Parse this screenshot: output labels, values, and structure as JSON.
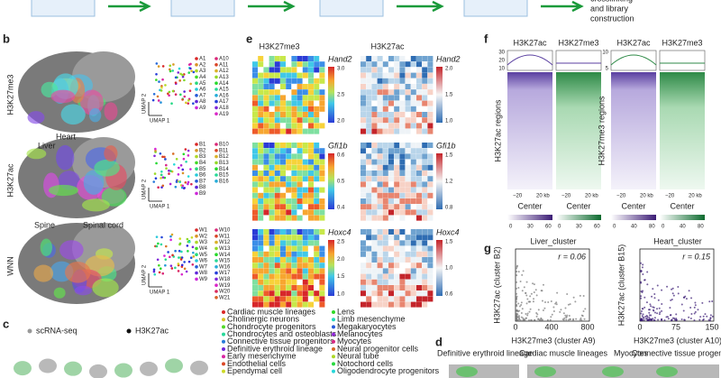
{
  "top": {
    "step_label": [
      "crosslinking",
      "and library",
      "construction"
    ]
  },
  "panel_b": {
    "label": "b",
    "rows": [
      {
        "name": "H3K27me3",
        "legend": [
          "A1",
          "A2",
          "A3",
          "A4",
          "A5",
          "A6",
          "A7",
          "A8",
          "A9",
          "A10",
          "A11",
          "A12",
          "A13",
          "A14",
          "A15",
          "A16",
          "A17",
          "A18",
          "A19"
        ]
      },
      {
        "name": "H3K27ac",
        "legend": [
          "B1",
          "B2",
          "B3",
          "B4",
          "B5",
          "B6",
          "B7",
          "B8",
          "B9",
          "B10",
          "B11",
          "B12",
          "B13",
          "B14",
          "B15",
          "B16"
        ]
      },
      {
        "name": "WNN",
        "legend": [
          "W1",
          "W2",
          "W3",
          "W4",
          "W5",
          "W6",
          "W7",
          "W8",
          "W9",
          "W10",
          "W11",
          "W12",
          "W13",
          "W14",
          "W15",
          "W16",
          "W17",
          "W18",
          "W19",
          "W20",
          "W21"
        ]
      }
    ],
    "annotations": [
      "Liver",
      "Heart",
      "Spine",
      "Spinal cord"
    ],
    "umap_x": "UMAP 1",
    "umap_y": "UMAP 2"
  },
  "panel_e": {
    "label": "e",
    "columns": [
      {
        "mark": "H3K27me3",
        "genes": [
          {
            "name": "Hand2",
            "ticks": [
              "3.0",
              "2.5",
              "2.0"
            ]
          },
          {
            "name": "Gfi1b",
            "ticks": [
              "0.6",
              "0.5",
              "0.4"
            ]
          },
          {
            "name": "Hoxc4",
            "ticks": [
              "2.5",
              "2.0",
              "1.5",
              "1.0"
            ]
          }
        ]
      },
      {
        "mark": "H3K27ac",
        "genes": [
          {
            "name": "Hand2",
            "ticks": [
              "2.0",
              "1.5",
              "1.0"
            ]
          },
          {
            "name": "Gfi1b",
            "ticks": [
              "1.5",
              "1.2",
              "0.8"
            ]
          },
          {
            "name": "Hoxc4",
            "ticks": [
              "1.5",
              "1.0",
              "0.6"
            ]
          }
        ]
      }
    ]
  },
  "panel_f": {
    "label": "f",
    "groups": [
      {
        "headers": [
          "H3K27ac",
          "H3K27me3"
        ],
        "y_label": "H3K27ac regions",
        "profile_ticks": [
          "30",
          "20",
          "10"
        ],
        "colorbar_ticks": [
          "0",
          "30",
          "60"
        ]
      },
      {
        "headers": [
          "H3K27ac",
          "H3K27me3"
        ],
        "y_label": "H3K27me3 regions",
        "profile_ticks": [
          "10",
          "5"
        ],
        "colorbar_ticks": [
          "0",
          "40",
          "80"
        ]
      }
    ],
    "x_ticks": [
      "−20",
      "20 kb"
    ],
    "x_label": "Center"
  },
  "panel_g": {
    "label": "g",
    "plots": [
      {
        "title": "Liver_cluster",
        "r": "r = 0.06",
        "y_label": "H3K27ac (cluster B2)",
        "x_label": "H3K27me3 (cluster A9)",
        "x_ticks": [
          "0",
          "400",
          "800"
        ]
      },
      {
        "title": "Heart_cluster",
        "r": "r = 0.15",
        "y_label": "H3K27ac (cluster B15)",
        "x_label": "H3K27me3 (cluster A10)",
        "x_ticks": [
          "0",
          "75",
          "150"
        ]
      }
    ]
  },
  "panel_c": {
    "label": "c",
    "legend_titles": [
      "scRNA-seq",
      "H3K27ac"
    ],
    "cell_types": [
      "Cardiac muscle lineages",
      "Cholinergic neurons",
      "Chondrocyte progenitors",
      "Chondrocytes and osteoblasts",
      "Connective tissue progenitors",
      "Definitive erythroid lineage",
      "Early mesenchyme",
      "Endothelial cells",
      "Ependymal cell",
      "Lens",
      "Limb mesenchyme",
      "Megakaryocytes",
      "Melanocytes",
      "Myocytes",
      "Neural progenitor cells",
      "Neural tube",
      "Notochord cells",
      "Oligodendrocyte progenitors"
    ]
  },
  "panel_d": {
    "label": "d",
    "labels": [
      "Definitive erythroid lineage",
      "Cardiac muscle lineages",
      "Myocytes",
      "Connective tissue progenitors"
    ]
  }
}
